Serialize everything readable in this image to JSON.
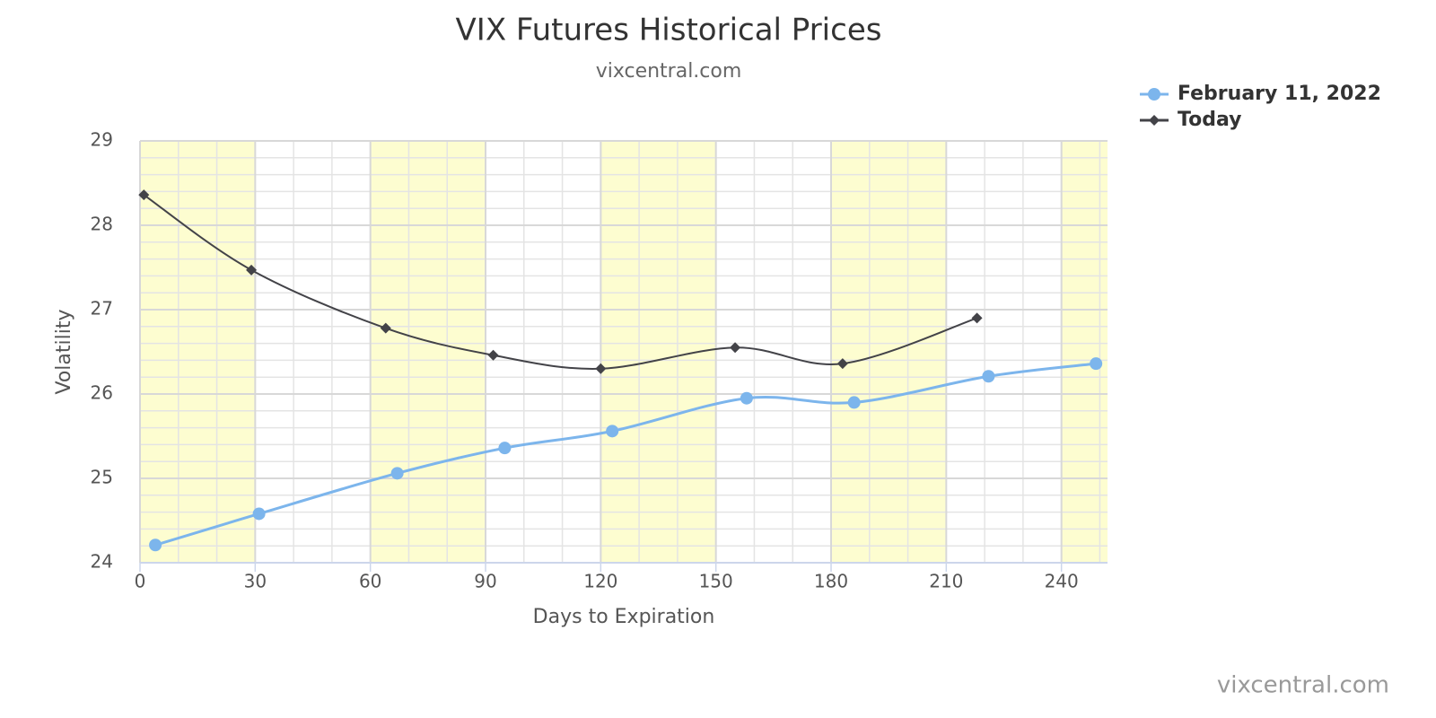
{
  "chart_data": {
    "type": "line",
    "title": "VIX Futures Historical Prices",
    "subtitle": "vixcentral.com",
    "credits": "vixcentral.com",
    "x_label": "Days to Expiration",
    "y_label": "Volatility",
    "xlim": [
      0,
      252
    ],
    "ylim": [
      24,
      29
    ],
    "xticks": [
      0,
      30,
      60,
      90,
      120,
      150,
      180,
      210,
      240
    ],
    "yticks": [
      24,
      25,
      26,
      27,
      28,
      29
    ],
    "x_minor_interval": 10,
    "y_minor_interval": 0.2,
    "grid": true,
    "smooth": true,
    "legend": "top-right",
    "plot_bands": [
      [
        0,
        30
      ],
      [
        60,
        90
      ],
      [
        120,
        150
      ],
      [
        180,
        210
      ],
      [
        240,
        252
      ]
    ],
    "band_color": "#fdfdd0",
    "series": [
      {
        "name": "February 11, 2022",
        "color": "#7cb5ec",
        "marker": "circle",
        "x": [
          4,
          31,
          67,
          95,
          123,
          158,
          186,
          221,
          249
        ],
        "values": [
          24.21,
          24.58,
          25.06,
          25.36,
          25.56,
          25.95,
          25.9,
          26.21,
          26.36
        ]
      },
      {
        "name": "Today",
        "color": "#434348",
        "marker": "diamond",
        "x": [
          1,
          29,
          64,
          92,
          120,
          155,
          183,
          218
        ],
        "values": [
          28.36,
          27.47,
          26.78,
          26.46,
          26.3,
          26.55,
          26.36,
          26.9
        ]
      }
    ]
  }
}
